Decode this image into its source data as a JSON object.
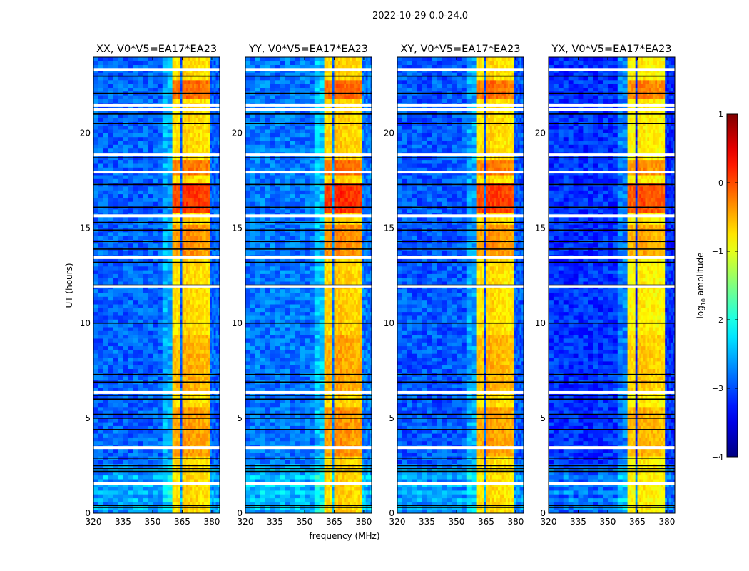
{
  "chart_data": {
    "type": "heatmap",
    "suptitle": "2022-10-29 0.0-24.0",
    "xlabel": "frequency (MHz)",
    "ylabel": "UT (hours)",
    "xlim": [
      320,
      384
    ],
    "ylim": [
      0,
      24
    ],
    "xticks": [
      "320",
      "335",
      "350",
      "365",
      "380"
    ],
    "xtick_values": [
      320,
      335,
      350,
      365,
      380
    ],
    "yticks": [
      "0",
      "5",
      "10",
      "15",
      "20"
    ],
    "ytick_values": [
      0,
      5,
      10,
      15,
      20
    ],
    "colorbar": {
      "label": "log10 amplitude",
      "label_main": "log",
      "label_sub": "10",
      "label_rest": " amplitude",
      "colormap": "jet",
      "range": [
        -4,
        1
      ],
      "ticks": [
        "1",
        "0",
        "−1",
        "−2",
        "−3",
        "−4"
      ],
      "tick_values": [
        1,
        0,
        -1,
        -2,
        -3,
        -4
      ]
    },
    "panels": [
      {
        "title": "XX, V0*V5=EA17*EA23",
        "gain": 0.0
      },
      {
        "title": "YY, V0*V5=EA17*EA23",
        "gain": 0.1
      },
      {
        "title": "XY, V0*V5=EA17*EA23",
        "gain": -0.05
      },
      {
        "title": "YX, V0*V5=EA17*EA23",
        "gain": -0.25
      }
    ],
    "model": {
      "background_level": -2.9,
      "bands": [
        {
          "from": 360.0,
          "to": 364.3,
          "level": -0.75
        },
        {
          "from": 364.7,
          "to": 368.7,
          "level": -0.65
        },
        {
          "from": 369.2,
          "to": 373.6,
          "level": -0.7
        },
        {
          "from": 374.1,
          "to": 378.7,
          "level": -0.75
        }
      ],
      "time_boosts": [
        {
          "t0": 15.9,
          "t1": 17.5,
          "boost": 0.8
        },
        {
          "t0": 17.8,
          "t1": 18.6,
          "boost": 0.5
        },
        {
          "t0": 21.9,
          "t1": 22.9,
          "boost": 0.55
        },
        {
          "t0": 13.5,
          "t1": 15.2,
          "boost": 0.35
        },
        {
          "t0": 3.0,
          "t1": 5.6,
          "boost": 0.3
        },
        {
          "t0": 6.5,
          "t1": 9.5,
          "boost": 0.2
        }
      ],
      "low_time_lift": {
        "t0": 0,
        "t1": 2.6,
        "lift": 0.45
      },
      "flagged_white_hours": [
        23.35,
        21.45,
        21.25,
        18.85,
        17.95,
        15.65,
        13.45,
        11.95,
        6.35,
        3.45,
        1.55
      ],
      "dark_line_hours": [
        23.0,
        22.1,
        21.0,
        20.5,
        18.7,
        17.3,
        16.1,
        15.3,
        14.9,
        14.3,
        13.9,
        13.2,
        12.0,
        10.0,
        7.3,
        6.9,
        6.2,
        6.0,
        5.2,
        5.0,
        4.4,
        2.9,
        2.5,
        2.35,
        2.2,
        0.4,
        0.3
      ]
    }
  }
}
